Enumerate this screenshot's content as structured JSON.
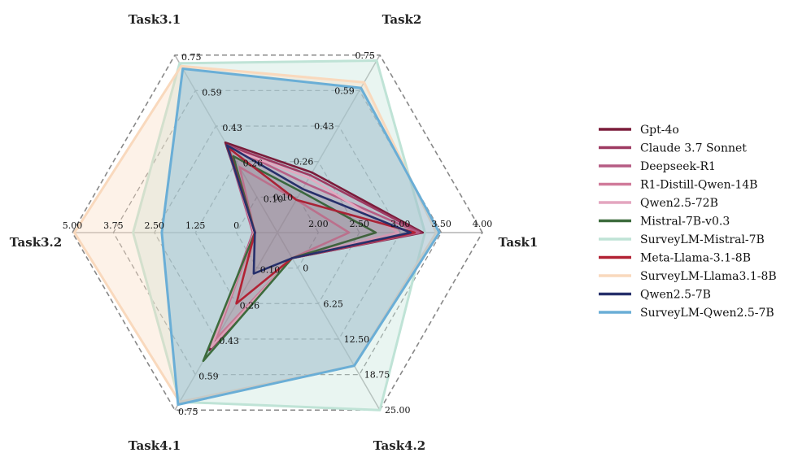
{
  "chart_data": {
    "type": "radar",
    "axes": [
      {
        "name": "Task1",
        "ticks": [
          "2.00",
          "2.50",
          "3.00",
          "3.50",
          "4.00"
        ],
        "min": 2.0,
        "max": 4.0
      },
      {
        "name": "Task2",
        "ticks": [
          "0.10",
          "0.26",
          "0.43",
          "0.59",
          "0.75"
        ],
        "min": 0.1,
        "max": 0.75
      },
      {
        "name": "Task3.1",
        "ticks": [
          "0.10",
          "0.26",
          "0.43",
          "0.59",
          "0.75"
        ],
        "min": 0.1,
        "max": 0.75
      },
      {
        "name": "Task3.2",
        "ticks": [
          "0",
          "1.25",
          "2.50",
          "3.75",
          "5.00"
        ],
        "min": 0,
        "max": 5.0
      },
      {
        "name": "Task4.1",
        "ticks": [
          "0.10",
          "0.26",
          "0.43",
          "0.59",
          "0.75"
        ],
        "min": 0.1,
        "max": 0.75
      },
      {
        "name": "Task4.2",
        "ticks": [
          "0",
          "6.25",
          "12.50",
          "18.75",
          "25.00"
        ],
        "min": 0,
        "max": 25.0
      }
    ],
    "series": [
      {
        "name": "Gpt-4o",
        "color": "#7a1c3a",
        "fill": false,
        "values": [
          3.42,
          0.32,
          0.43,
          0.54,
          0.53,
          3.6
        ]
      },
      {
        "name": "Claude 3.7 Sonnet",
        "color": "#9e3a62",
        "fill": false,
        "values": [
          3.4,
          0.31,
          0.42,
          0.55,
          0.51,
          3.6
        ]
      },
      {
        "name": "Deepseek-R1",
        "color": "#b65c84",
        "fill": false,
        "values": [
          3.38,
          0.28,
          0.42,
          0.6,
          0.5,
          3.6
        ]
      },
      {
        "name": "R1-Distill-Qwen-14B",
        "color": "#d07a9a",
        "fill": false,
        "values": [
          2.7,
          0.22,
          0.34,
          0.55,
          0.49,
          3.6
        ]
      },
      {
        "name": "Qwen2.5-72B",
        "color": "#e4a6bf",
        "fill": false,
        "values": [
          3.18,
          0.3,
          0.41,
          0.57,
          0.52,
          3.6
        ]
      },
      {
        "name": "Mistral-7B-v0.3",
        "color": "#3c6b3c",
        "fill": false,
        "values": [
          2.96,
          0.25,
          0.38,
          0.55,
          0.57,
          3.6
        ]
      },
      {
        "name": "SurveyLM-Mistral-7B",
        "color": "#bfe3d6",
        "fill": true,
        "values": [
          3.44,
          0.73,
          0.72,
          3.52,
          0.72,
          25.0
        ]
      },
      {
        "name": "Meta-Llama-3.1-8B",
        "color": "#b22234",
        "fill": false,
        "values": [
          3.34,
          0.22,
          0.41,
          0.55,
          0.36,
          3.6
        ]
      },
      {
        "name": "SurveyLM-Llama3.1-8B",
        "color": "#f9d9bd",
        "fill": true,
        "values": [
          3.55,
          0.65,
          0.71,
          4.95,
          0.72,
          18.75
        ]
      },
      {
        "name": "Qwen2.5-7B",
        "color": "#27306b",
        "fill": false,
        "values": [
          3.3,
          0.26,
          0.42,
          0.55,
          0.25,
          3.6
        ]
      },
      {
        "name": "SurveyLM-Qwen2.5-7B",
        "color": "#6aaed6",
        "fill": true,
        "values": [
          3.58,
          0.63,
          0.7,
          2.82,
          0.73,
          18.75
        ]
      }
    ]
  }
}
